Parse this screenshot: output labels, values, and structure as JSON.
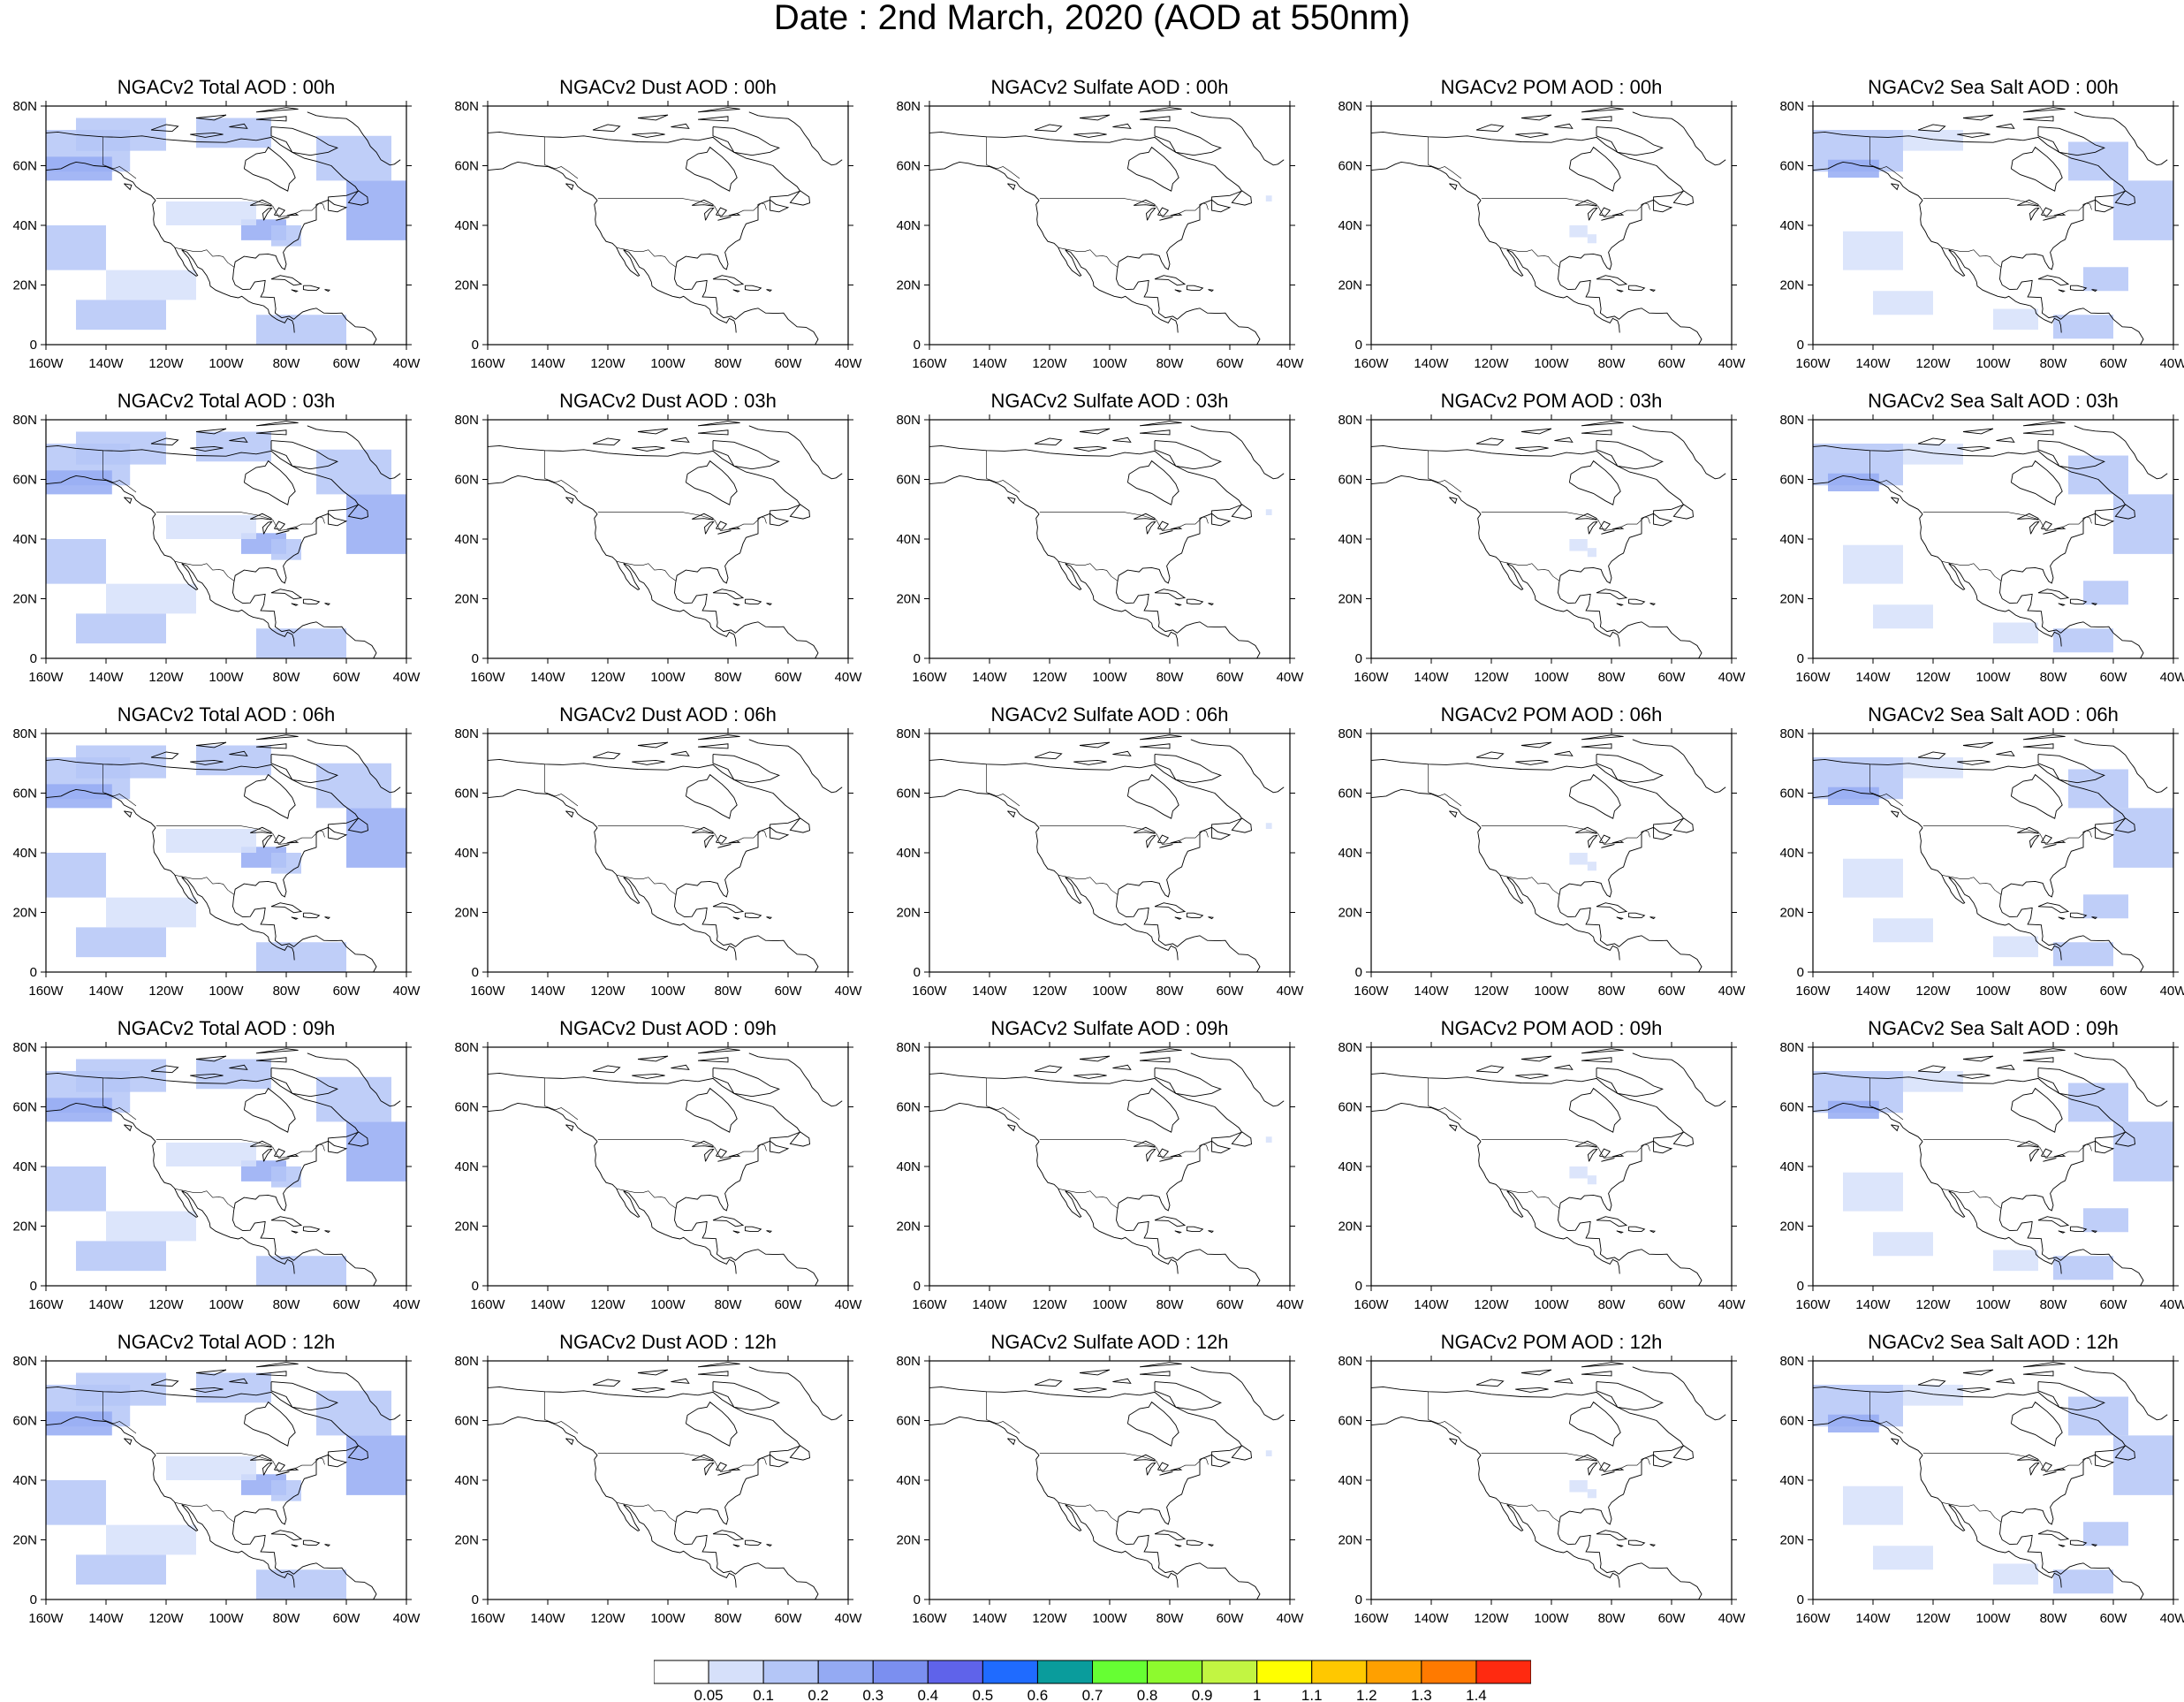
{
  "title": "Date : 2nd March, 2020 (AOD at 550nm)",
  "x_ticks": [
    "160W",
    "140W",
    "120W",
    "100W",
    "80W",
    "60W",
    "40W"
  ],
  "y_ticks": [
    "0",
    "20N",
    "40N",
    "60N",
    "80N"
  ],
  "rows": [
    [
      "NGACv2 Total AOD : 00h",
      "NGACv2 Dust AOD : 00h",
      "NGACv2 Sulfate AOD : 00h",
      "NGACv2 POM AOD : 00h",
      "NGACv2 Sea Salt AOD : 00h"
    ],
    [
      "NGACv2 Total AOD : 03h",
      "NGACv2 Dust AOD : 03h",
      "NGACv2 Sulfate AOD : 03h",
      "NGACv2 POM AOD : 03h",
      "NGACv2 Sea Salt AOD : 03h"
    ],
    [
      "NGACv2 Total AOD : 06h",
      "NGACv2 Dust AOD : 06h",
      "NGACv2 Sulfate AOD : 06h",
      "NGACv2 POM AOD : 06h",
      "NGACv2 Sea Salt AOD : 06h"
    ],
    [
      "NGACv2 Total AOD : 09h",
      "NGACv2 Dust AOD : 09h",
      "NGACv2 Sulfate AOD : 09h",
      "NGACv2 POM AOD : 09h",
      "NGACv2 Sea Salt  AOD : 09h"
    ],
    [
      "NGACv2 Total AOD  : 12h",
      "NGACv2 Dust AOD : 12h",
      "NGACv2 Sulfate AOD : 12h",
      "NGACv2 POM  AOD : 12h",
      "NGACv2 Sea Salt  AOD : 12h"
    ]
  ],
  "colorbar": {
    "colors": [
      "#ffffff",
      "#d6e0fa",
      "#b4c6f7",
      "#94aaf3",
      "#7b8ff0",
      "#5f63ea",
      "#1f6bff",
      "#0a9c9c",
      "#66ff33",
      "#8dfa2e",
      "#c2f542",
      "#ffff00",
      "#ffc800",
      "#ffa000",
      "#ff7a00",
      "#ff2a10"
    ],
    "labels": [
      "0.05",
      "0.1",
      "0.2",
      "0.3",
      "0.4",
      "0.5",
      "0.6",
      "0.7",
      "0.8",
      "0.9",
      "1",
      "1.1",
      "1.2",
      "1.3",
      "1.4"
    ]
  }
}
